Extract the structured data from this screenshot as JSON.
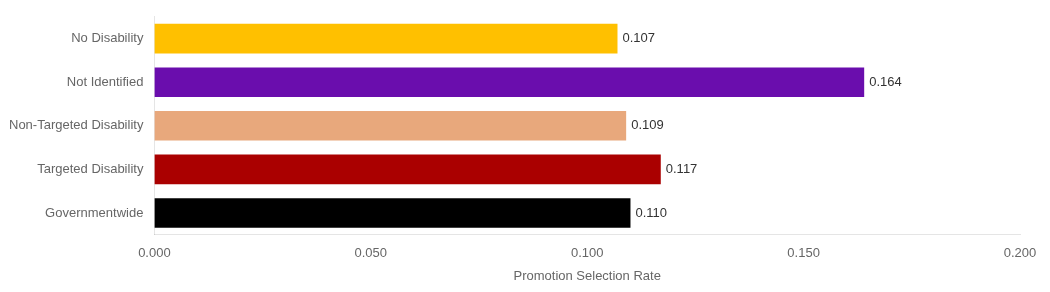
{
  "chart_data": {
    "type": "bar",
    "orientation": "horizontal",
    "categories": [
      "No Disability",
      "Not Identified",
      "Non-Targeted Disability",
      "Targeted Disability",
      "Governmentwide"
    ],
    "values": [
      0.107,
      0.164,
      0.109,
      0.117,
      0.11
    ],
    "value_labels": [
      "0.107",
      "0.164",
      "0.109",
      "0.117",
      "0.110"
    ],
    "colors": [
      "#ffc000",
      "#6a0dad",
      "#e8a87c",
      "#aa0000",
      "#000000"
    ],
    "xlabel": "Promotion Selection Rate",
    "xlim": [
      0.0,
      0.2
    ],
    "xticks": [
      {
        "value": 0.0,
        "label": "0.000"
      },
      {
        "value": 0.05,
        "label": "0.050"
      },
      {
        "value": 0.1,
        "label": "0.100"
      },
      {
        "value": 0.15,
        "label": "0.150"
      },
      {
        "value": 0.2,
        "label": "0.200"
      }
    ],
    "grid": false,
    "data_labels": true
  }
}
